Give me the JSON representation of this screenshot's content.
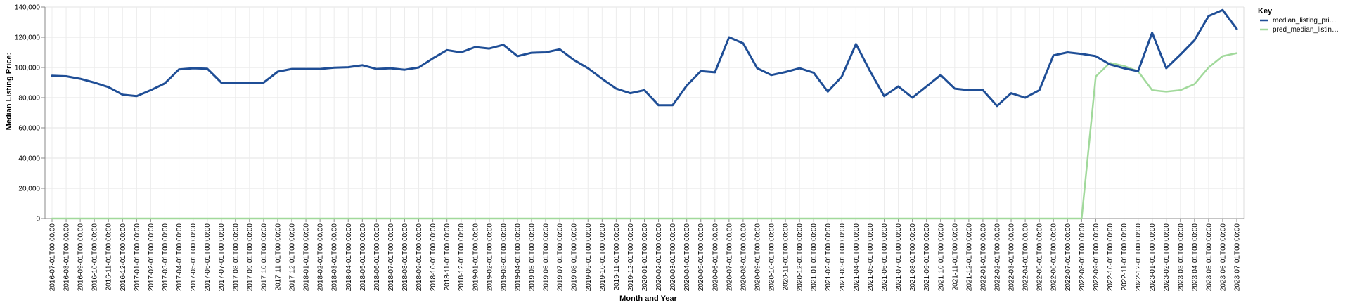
{
  "chart_data": {
    "type": "line",
    "xlabel": "Month and Year",
    "ylabel": "Median Listing Price:",
    "ylim": [
      0,
      140000
    ],
    "yticks": [
      0,
      20000,
      40000,
      60000,
      80000,
      100000,
      120000,
      140000
    ],
    "ytick_labels": [
      "0",
      "20,000",
      "40,000",
      "60,000",
      "80,000",
      "100,000",
      "120,000",
      "140,000"
    ],
    "grid": true,
    "legend": {
      "title": "Key",
      "placement": "top-right",
      "entries": [
        "median_listing_pri…",
        "pred_median_listin…"
      ]
    },
    "x": [
      "2016-07-01T00:00:00",
      "2016-08-01T00:00:00",
      "2016-09-01T00:00:00",
      "2016-10-01T00:00:00",
      "2016-11-01T00:00:00",
      "2016-12-01T00:00:00",
      "2017-01-01T00:00:00",
      "2017-02-01T00:00:00",
      "2017-03-01T00:00:00",
      "2017-04-01T00:00:00",
      "2017-05-01T00:00:00",
      "2017-06-01T00:00:00",
      "2017-07-01T00:00:00",
      "2017-08-01T00:00:00",
      "2017-09-01T00:00:00",
      "2017-10-01T00:00:00",
      "2017-11-01T00:00:00",
      "2017-12-01T00:00:00",
      "2018-01-01T00:00:00",
      "2018-02-01T00:00:00",
      "2018-03-01T00:00:00",
      "2018-04-01T00:00:00",
      "2018-05-01T00:00:00",
      "2018-06-01T00:00:00",
      "2018-07-01T00:00:00",
      "2018-08-01T00:00:00",
      "2018-09-01T00:00:00",
      "2018-10-01T00:00:00",
      "2018-11-01T00:00:00",
      "2018-12-01T00:00:00",
      "2019-01-01T00:00:00",
      "2019-02-01T00:00:00",
      "2019-03-01T00:00:00",
      "2019-04-01T00:00:00",
      "2019-05-01T00:00:00",
      "2019-06-01T00:00:00",
      "2019-07-01T00:00:00",
      "2019-08-01T00:00:00",
      "2019-09-01T00:00:00",
      "2019-10-01T00:00:00",
      "2019-11-01T00:00:00",
      "2019-12-01T00:00:00",
      "2020-01-01T00:00:00",
      "2020-02-01T00:00:00",
      "2020-03-01T00:00:00",
      "2020-04-01T00:00:00",
      "2020-05-01T00:00:00",
      "2020-06-01T00:00:00",
      "2020-07-01T00:00:00",
      "2020-08-01T00:00:00",
      "2020-09-01T00:00:00",
      "2020-10-01T00:00:00",
      "2020-11-01T00:00:00",
      "2020-12-01T00:00:00",
      "2021-01-01T00:00:00",
      "2021-02-01T00:00:00",
      "2021-03-01T00:00:00",
      "2021-04-01T00:00:00",
      "2021-05-01T00:00:00",
      "2021-06-01T00:00:00",
      "2021-07-01T00:00:00",
      "2021-08-01T00:00:00",
      "2021-09-01T00:00:00",
      "2021-10-01T00:00:00",
      "2021-11-01T00:00:00",
      "2021-12-01T00:00:00",
      "2022-01-01T00:00:00",
      "2022-02-01T00:00:00",
      "2022-03-01T00:00:00",
      "2022-04-01T00:00:00",
      "2022-05-01T00:00:00",
      "2022-06-01T00:00:00",
      "2022-07-01T00:00:00",
      "2022-08-01T00:00:00",
      "2022-09-01T00:00:00",
      "2022-10-01T00:00:00",
      "2022-11-01T00:00:00",
      "2022-12-01T00:00:00",
      "2023-01-01T00:00:00",
      "2023-02-01T00:00:00",
      "2023-03-01T00:00:00",
      "2023-04-01T00:00:00",
      "2023-05-01T00:00:00",
      "2023-06-01T00:00:00",
      "2023-07-01T00:00:00"
    ],
    "series": [
      {
        "name": "median_listing_pri…",
        "color": "#1f4e96",
        "values": [
          94500,
          94200,
          92500,
          90000,
          87000,
          82000,
          81000,
          85000,
          89500,
          98700,
          99500,
          99200,
          90000,
          90000,
          90000,
          90000,
          97200,
          99000,
          99000,
          99000,
          99900,
          100200,
          101500,
          99000,
          99500,
          98500,
          100000,
          106000,
          111500,
          110000,
          113500,
          112500,
          115000,
          107500,
          109700,
          110000,
          112000,
          105000,
          99500,
          92500,
          86000,
          83000,
          85000,
          75000,
          75000,
          88000,
          97600,
          96800,
          120000,
          116000,
          99500,
          95000,
          97000,
          99500,
          96500,
          84000,
          94000,
          115500,
          97500,
          81000,
          87500,
          80000,
          87500,
          95000,
          86000,
          85000,
          85000,
          74500,
          83000,
          80000,
          85000,
          108000,
          110000,
          109000,
          107500,
          102000,
          99500,
          97500,
          123000,
          99500,
          108500,
          118000,
          134000,
          138000,
          125500
        ]
      },
      {
        "name": "pred_median_listin…",
        "color": "#a1d99b",
        "values": [
          0,
          0,
          0,
          0,
          0,
          0,
          0,
          0,
          0,
          0,
          0,
          0,
          0,
          0,
          0,
          0,
          0,
          0,
          0,
          0,
          0,
          0,
          0,
          0,
          0,
          0,
          0,
          0,
          0,
          0,
          0,
          0,
          0,
          0,
          0,
          0,
          0,
          0,
          0,
          0,
          0,
          0,
          0,
          0,
          0,
          0,
          0,
          0,
          0,
          0,
          0,
          0,
          0,
          0,
          0,
          0,
          0,
          0,
          0,
          0,
          0,
          0,
          0,
          0,
          0,
          0,
          0,
          0,
          0,
          0,
          0,
          0,
          0,
          0,
          94000,
          103000,
          101000,
          97500,
          85000,
          84000,
          85000,
          89000,
          100000,
          107500,
          109500
        ]
      }
    ]
  }
}
